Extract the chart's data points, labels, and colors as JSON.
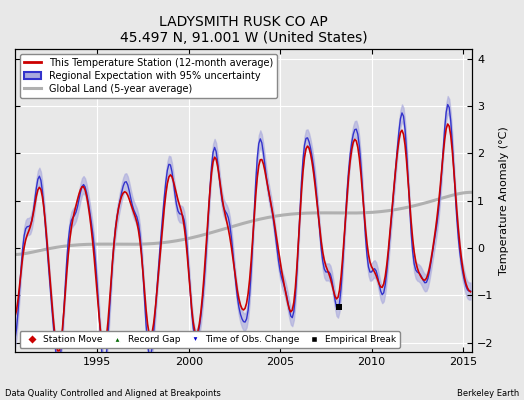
{
  "title": "LADYSMITH RUSK CO AP",
  "subtitle": "45.497 N, 91.001 W (United States)",
  "ylabel": "Temperature Anomaly (°C)",
  "xlabel_left": "Data Quality Controlled and Aligned at Breakpoints",
  "xlabel_right": "Berkeley Earth",
  "ylim": [
    -2.2,
    4.2
  ],
  "xlim": [
    1990.5,
    2015.5
  ],
  "xticks": [
    1995,
    2000,
    2005,
    2010,
    2015
  ],
  "yticks": [
    -2,
    -1,
    0,
    1,
    2,
    3,
    4
  ],
  "background_color": "#e8e8e8",
  "plot_bg_color": "#e8e8e8",
  "grid_color": "#ffffff",
  "station_color": "#cc0000",
  "regional_color": "#3333cc",
  "regional_fill_color": "#aaaadd",
  "global_color": "#b0b0b0",
  "empirical_break_year": 2008.2,
  "empirical_break_value": -1.25,
  "legend_labels": [
    "This Temperature Station (12-month average)",
    "Regional Expectation with 95% uncertainty",
    "Global Land (5-year average)"
  ],
  "marker_legend": [
    "Station Move",
    "Record Gap",
    "Time of Obs. Change",
    "Empirical Break"
  ]
}
